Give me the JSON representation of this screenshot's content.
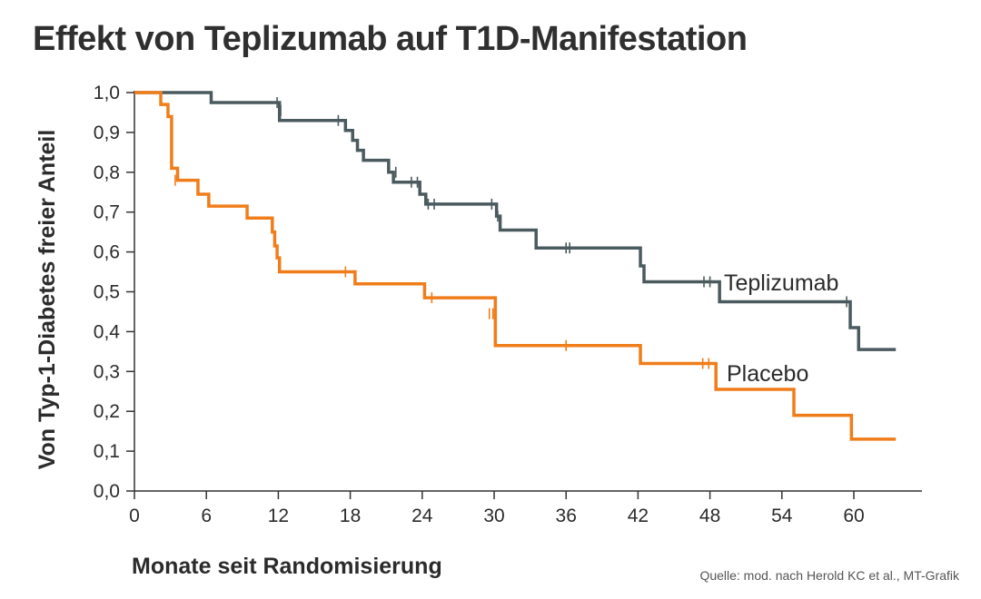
{
  "title": "Effekt von Teplizumab auf T1D-Manifestation",
  "source": "Quelle: mod. nach Herold KC et al., MT-Grafik",
  "chart_data": {
    "type": "line",
    "subtype": "kaplan-meier-step",
    "title": "Effekt von Teplizumab auf T1D-Manifestation",
    "xlabel": "Monate seit Randomisierung",
    "ylabel": "Von Typ-1-Diabetes freier Anteil",
    "xlim": [
      0,
      64
    ],
    "ylim": [
      0,
      1.0
    ],
    "xticks": [
      0,
      6,
      12,
      18,
      24,
      30,
      36,
      42,
      48,
      54,
      60
    ],
    "xtick_labels": [
      "0",
      "6",
      "12",
      "18",
      "24",
      "30",
      "36",
      "42",
      "48",
      "54",
      "60"
    ],
    "yticks": [
      0,
      0.1,
      0.2,
      0.3,
      0.4,
      0.5,
      0.6,
      0.7,
      0.8,
      0.9,
      1.0
    ],
    "ytick_labels": [
      "0,0",
      "0,1",
      "0,2",
      "0,3",
      "0,4",
      "0,5",
      "0,6",
      "0,7",
      "0,8",
      "0,9",
      "1,0"
    ],
    "grid": false,
    "series": [
      {
        "name": "Teplizumab",
        "color": "#4a5a5f",
        "steps": [
          [
            0,
            1.0
          ],
          [
            6.4,
            0.975
          ],
          [
            12.1,
            0.93
          ],
          [
            17.6,
            0.905
          ],
          [
            18.2,
            0.88
          ],
          [
            18.6,
            0.855
          ],
          [
            19.1,
            0.83
          ],
          [
            21.2,
            0.8
          ],
          [
            21.6,
            0.775
          ],
          [
            23.8,
            0.745
          ],
          [
            24.3,
            0.72
          ],
          [
            30.2,
            0.69
          ],
          [
            30.5,
            0.655
          ],
          [
            33.5,
            0.61
          ],
          [
            42.2,
            0.565
          ],
          [
            42.5,
            0.525
          ],
          [
            48.8,
            0.475
          ],
          [
            59.7,
            0.41
          ],
          [
            60.4,
            0.355
          ]
        ],
        "end_x": 63.5,
        "censored": [
          [
            11.9,
            0.975
          ],
          [
            12.2,
            0.955
          ],
          [
            17.0,
            0.93
          ],
          [
            21.8,
            0.8
          ],
          [
            23.1,
            0.775
          ],
          [
            23.6,
            0.775
          ],
          [
            24.5,
            0.72
          ],
          [
            25.0,
            0.72
          ],
          [
            29.8,
            0.72
          ],
          [
            30.3,
            0.69
          ],
          [
            36.0,
            0.61
          ],
          [
            36.3,
            0.61
          ],
          [
            47.5,
            0.525
          ],
          [
            48.0,
            0.525
          ],
          [
            59.4,
            0.475
          ]
        ]
      },
      {
        "name": "Placebo",
        "color": "#f07d1a",
        "steps": [
          [
            0,
            1.0
          ],
          [
            2.2,
            0.97
          ],
          [
            2.8,
            0.94
          ],
          [
            3.1,
            0.81
          ],
          [
            3.6,
            0.78
          ],
          [
            5.3,
            0.745
          ],
          [
            6.2,
            0.715
          ],
          [
            9.4,
            0.685
          ],
          [
            11.5,
            0.65
          ],
          [
            11.7,
            0.615
          ],
          [
            11.9,
            0.585
          ],
          [
            12.1,
            0.55
          ],
          [
            18.4,
            0.52
          ],
          [
            24.2,
            0.485
          ],
          [
            30.1,
            0.365
          ],
          [
            42.2,
            0.32
          ],
          [
            48.5,
            0.255
          ],
          [
            55.0,
            0.19
          ],
          [
            59.8,
            0.13
          ]
        ],
        "end_x": 63.5,
        "censored": [
          [
            3.4,
            0.78
          ],
          [
            17.6,
            0.55
          ],
          [
            24.8,
            0.485
          ],
          [
            29.6,
            0.445
          ],
          [
            29.9,
            0.445
          ],
          [
            36.0,
            0.365
          ],
          [
            47.4,
            0.32
          ],
          [
            47.9,
            0.32
          ]
        ]
      }
    ]
  }
}
